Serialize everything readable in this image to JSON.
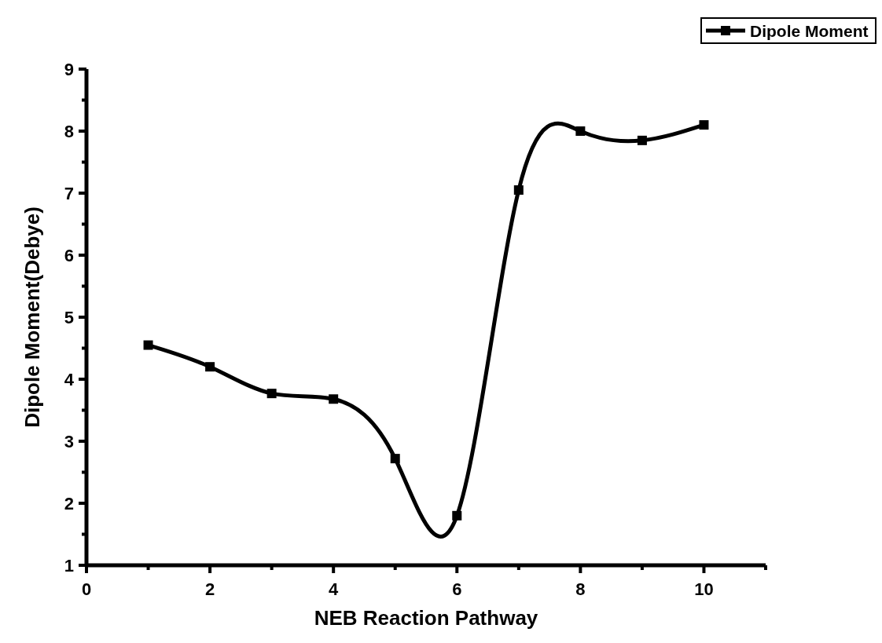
{
  "chart_data": {
    "type": "line",
    "xlabel": "NEB Reaction Pathway",
    "ylabel": "Dipole Moment(Debye)",
    "x": [
      1,
      2,
      3,
      4,
      5,
      6,
      7,
      8,
      9,
      10
    ],
    "series": [
      {
        "name": "Dipole Moment",
        "color": "#000000",
        "values": [
          4.55,
          4.2,
          3.77,
          3.68,
          2.72,
          1.8,
          7.05,
          8.0,
          7.85,
          8.1
        ]
      }
    ],
    "xlim": [
      0,
      11
    ],
    "xticks": [
      0,
      2,
      4,
      6,
      8,
      10
    ],
    "ylim": [
      1,
      9
    ],
    "yticks": [
      1,
      2,
      3,
      4,
      5,
      6,
      7,
      8,
      9
    ],
    "marker": "square",
    "line_style": "solid",
    "legend": "top right",
    "grid": false
  }
}
